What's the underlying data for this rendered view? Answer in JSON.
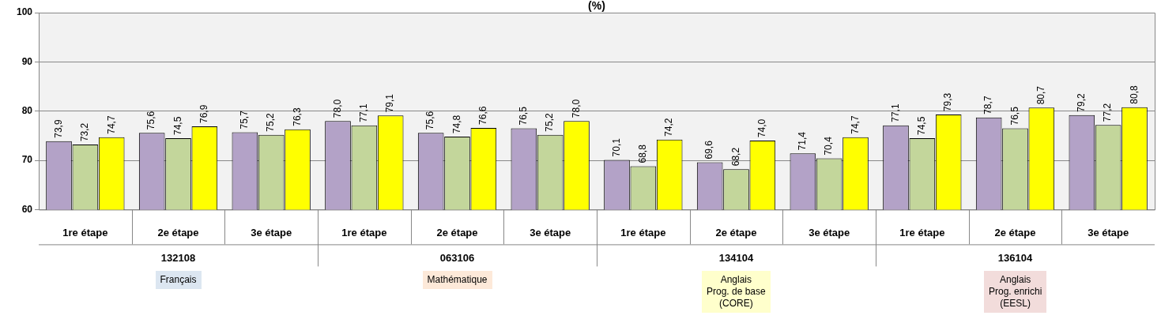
{
  "chart_data": {
    "type": "bar",
    "title": "(%)",
    "categories": [
      "1re étape",
      "2e étape",
      "3e étape",
      "1re étape",
      "2e étape",
      "3e étape",
      "1re étape",
      "2e étape",
      "3e étape",
      "1re étape",
      "2e étape",
      "3e étape"
    ],
    "series": [
      {
        "color": "#b3a2c7",
        "values": [
          73.9,
          75.6,
          75.7,
          78.0,
          75.6,
          76.5,
          70.1,
          69.6,
          71.4,
          77.1,
          78.7,
          79.2
        ],
        "value_labels": [
          "73,9",
          "75,6",
          "75,7",
          "78,0",
          "75,6",
          "76,5",
          "70,1",
          "69,6",
          "71,4",
          "77,1",
          "78,7",
          "79,2"
        ]
      },
      {
        "color": "#c3d69b",
        "values": [
          73.2,
          74.5,
          75.2,
          77.1,
          74.8,
          75.2,
          68.8,
          68.2,
          70.4,
          74.5,
          76.5,
          77.2
        ],
        "value_labels": [
          "73,2",
          "74,5",
          "75,2",
          "77,1",
          "74,8",
          "75,2",
          "68,8",
          "68,2",
          "70,4",
          "74,5",
          "76,5",
          "77,2"
        ]
      },
      {
        "color": "#ffff00",
        "values": [
          74.7,
          76.9,
          76.3,
          79.1,
          76.6,
          78.0,
          74.2,
          74.0,
          74.7,
          79.3,
          80.7,
          80.8
        ],
        "value_labels": [
          "74,7",
          "76,9",
          "76,3",
          "79,1",
          "76,6",
          "78,0",
          "74,2",
          "74,0",
          "74,7",
          "79,3",
          "80,7",
          "80,8"
        ]
      }
    ],
    "ylim": [
      60,
      100
    ],
    "yticks": [
      60,
      70,
      80,
      90,
      100
    ],
    "grid": "y",
    "annotations": [
      "132108",
      "063106",
      "134104",
      "136104",
      "Français",
      "Mathématique",
      "Anglais\nProg. de base\n(CORE)",
      "Anglais\nProg. enrichi\n(EESL)"
    ]
  }
}
